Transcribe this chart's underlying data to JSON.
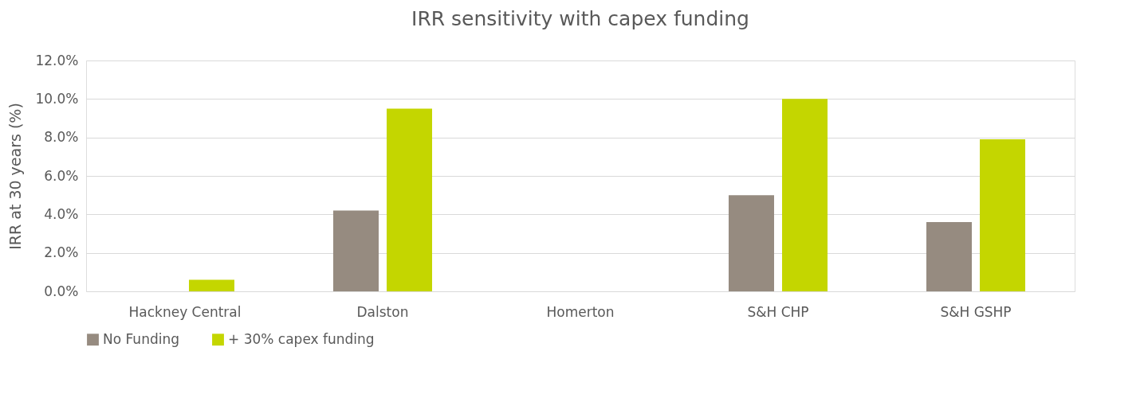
{
  "chart_data": {
    "type": "bar",
    "title": "IRR sensitivity with capex funding",
    "ylabel": "IRR at 30 years (%)",
    "categories": [
      "Hackney Central",
      "Dalston",
      "Homerton",
      "S&H  CHP",
      "S&H GSHP"
    ],
    "series": [
      {
        "name": "No Funding",
        "color": "#968b80",
        "values": [
          null,
          4.2,
          null,
          5.0,
          3.6
        ]
      },
      {
        "name": "+ 30% capex funding",
        "color": "#c4d600",
        "values": [
          0.6,
          9.5,
          null,
          10.0,
          7.9
        ]
      }
    ],
    "ylim": [
      0,
      12
    ],
    "yticks": [
      {
        "value": 0,
        "label": "0.0%"
      },
      {
        "value": 2,
        "label": "2.0%"
      },
      {
        "value": 4,
        "label": "4.0%"
      },
      {
        "value": 6,
        "label": "6.0%"
      },
      {
        "value": 8,
        "label": "8.0%"
      },
      {
        "value": 10,
        "label": "10.0%"
      },
      {
        "value": 12,
        "label": "12.0%"
      }
    ],
    "grid": "y",
    "legend": "bottom"
  }
}
